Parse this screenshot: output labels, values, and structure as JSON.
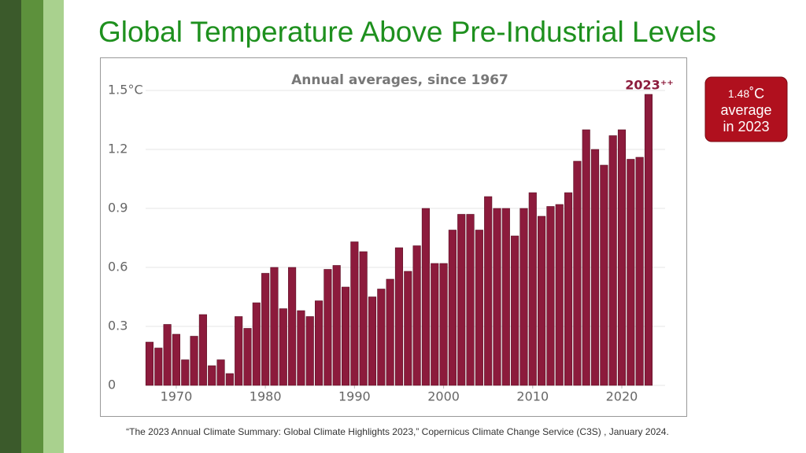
{
  "slide": {
    "title": "Global Temperature Above Pre-Industrial Levels",
    "callout": [
      "1.48",
      "˚C",
      "average",
      "in 2023"
    ],
    "citation": "“The 2023 Annual Climate Summary: Global Climate Highlights 2023,” Copernicus Climate Change Service (C3S) , January 2024."
  },
  "chart_data": {
    "type": "bar",
    "subtitle": "Annual averages, since 1967",
    "annotation": "2023⁺⁺",
    "color": "#8c1b3c",
    "x": [
      1967,
      1968,
      1969,
      1970,
      1971,
      1972,
      1973,
      1974,
      1975,
      1976,
      1977,
      1978,
      1979,
      1980,
      1981,
      1982,
      1983,
      1984,
      1985,
      1986,
      1987,
      1988,
      1989,
      1990,
      1991,
      1992,
      1993,
      1994,
      1995,
      1996,
      1997,
      1998,
      1999,
      2000,
      2001,
      2002,
      2003,
      2004,
      2005,
      2006,
      2007,
      2008,
      2009,
      2010,
      2011,
      2012,
      2013,
      2014,
      2015,
      2016,
      2017,
      2018,
      2019,
      2020,
      2021,
      2022,
      2023
    ],
    "values": [
      0.22,
      0.19,
      0.31,
      0.26,
      0.13,
      0.25,
      0.36,
      0.1,
      0.13,
      0.06,
      0.35,
      0.29,
      0.42,
      0.57,
      0.6,
      0.39,
      0.6,
      0.38,
      0.35,
      0.43,
      0.59,
      0.61,
      0.5,
      0.73,
      0.68,
      0.45,
      0.49,
      0.54,
      0.7,
      0.58,
      0.71,
      0.9,
      0.62,
      0.62,
      0.79,
      0.87,
      0.87,
      0.79,
      0.96,
      0.9,
      0.9,
      0.76,
      0.9,
      0.98,
      0.86,
      0.91,
      0.92,
      0.98,
      1.14,
      1.3,
      1.2,
      1.12,
      1.27,
      1.3,
      1.15,
      1.16,
      1.48
    ],
    "xlim": [
      1964,
      2025
    ],
    "xticks": [
      1970,
      1980,
      1990,
      2000,
      2010,
      2020
    ],
    "ylim": [
      0,
      1.55
    ],
    "yticks": [
      0,
      0.3,
      0.6,
      0.9,
      1.2,
      {
        "value": 1.5,
        "label": "1.5°C"
      }
    ],
    "grid": true
  }
}
